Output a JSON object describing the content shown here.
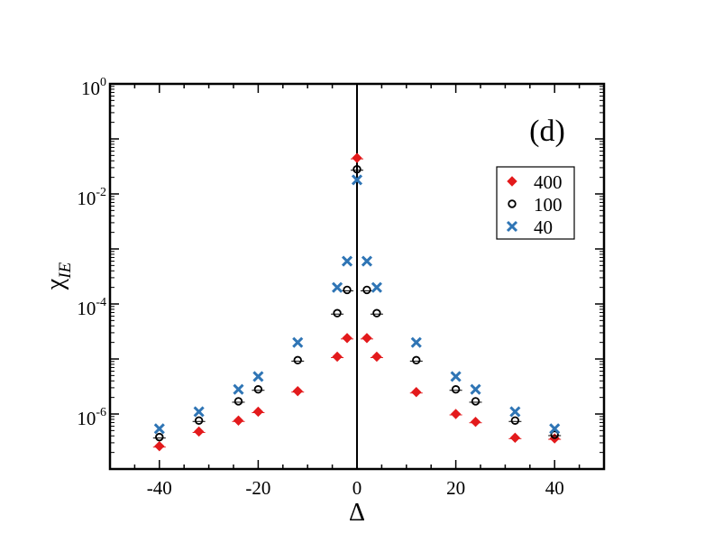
{
  "chart_data": {
    "type": "scatter",
    "panel_label": "(d)",
    "xlabel": "Δ",
    "ylabel_main": "χ",
    "ylabel_sub": "IE",
    "xlim": [
      -50,
      50
    ],
    "ylim_log10": [
      -7,
      0
    ],
    "yscale": "log",
    "grid": false,
    "legend_position": "top-right",
    "x_ticks": [
      -40,
      -20,
      0,
      20,
      40
    ],
    "x_tick_labels": [
      "-40",
      "-20",
      "0",
      "20",
      "40"
    ],
    "y_ticks": [
      {
        "base": "10",
        "exp": "0",
        "log10": 0
      },
      {
        "base": "10",
        "exp": "-2",
        "log10": -2
      },
      {
        "base": "10",
        "exp": "-4",
        "log10": -4
      },
      {
        "base": "10",
        "exp": "-6",
        "log10": -6
      }
    ],
    "vertical_reference_line_x": 0,
    "series": [
      {
        "name": "400",
        "marker": "diamond",
        "color": "#e31a1c",
        "points": [
          [
            -40,
            2.6e-07
          ],
          [
            -32,
            4.8e-07
          ],
          [
            -24,
            7.6e-07
          ],
          [
            -20,
            1.1e-06
          ],
          [
            -12,
            2.6e-06
          ],
          [
            -4,
            1.1e-05
          ],
          [
            -2,
            2.4e-05
          ],
          [
            0,
            0.045
          ],
          [
            2,
            2.4e-05
          ],
          [
            4,
            1.1e-05
          ],
          [
            12,
            2.5e-06
          ],
          [
            20,
            1e-06
          ],
          [
            24,
            7.2e-07
          ],
          [
            32,
            3.7e-07
          ],
          [
            40,
            3.6e-07
          ]
        ]
      },
      {
        "name": "100",
        "marker": "circle",
        "color": "#000000",
        "points": [
          [
            -40,
            3.8e-07
          ],
          [
            -32,
            7.6e-07
          ],
          [
            -24,
            1.7e-06
          ],
          [
            -20,
            2.8e-06
          ],
          [
            -12,
            9.5e-06
          ],
          [
            -4,
            6.8e-05
          ],
          [
            -2,
            0.00018
          ],
          [
            0,
            0.028
          ],
          [
            2,
            0.00018
          ],
          [
            4,
            6.8e-05
          ],
          [
            12,
            9.5e-06
          ],
          [
            20,
            2.8e-06
          ],
          [
            24,
            1.7e-06
          ],
          [
            32,
            7.6e-07
          ],
          [
            40,
            4.2e-07
          ]
        ]
      },
      {
        "name": "40",
        "marker": "x",
        "color": "#2f75b5",
        "points": [
          [
            -40,
            5.4e-07
          ],
          [
            -32,
            1.1e-06
          ],
          [
            -24,
            2.8e-06
          ],
          [
            -20,
            4.8e-06
          ],
          [
            -12,
            2e-05
          ],
          [
            -4,
            0.0002
          ],
          [
            -2,
            0.0006
          ],
          [
            0,
            0.018
          ],
          [
            2,
            0.0006
          ],
          [
            4,
            0.0002
          ],
          [
            12,
            2e-05
          ],
          [
            20,
            4.8e-06
          ],
          [
            24,
            2.8e-06
          ],
          [
            32,
            1.1e-06
          ],
          [
            40,
            5.4e-07
          ]
        ]
      }
    ]
  }
}
